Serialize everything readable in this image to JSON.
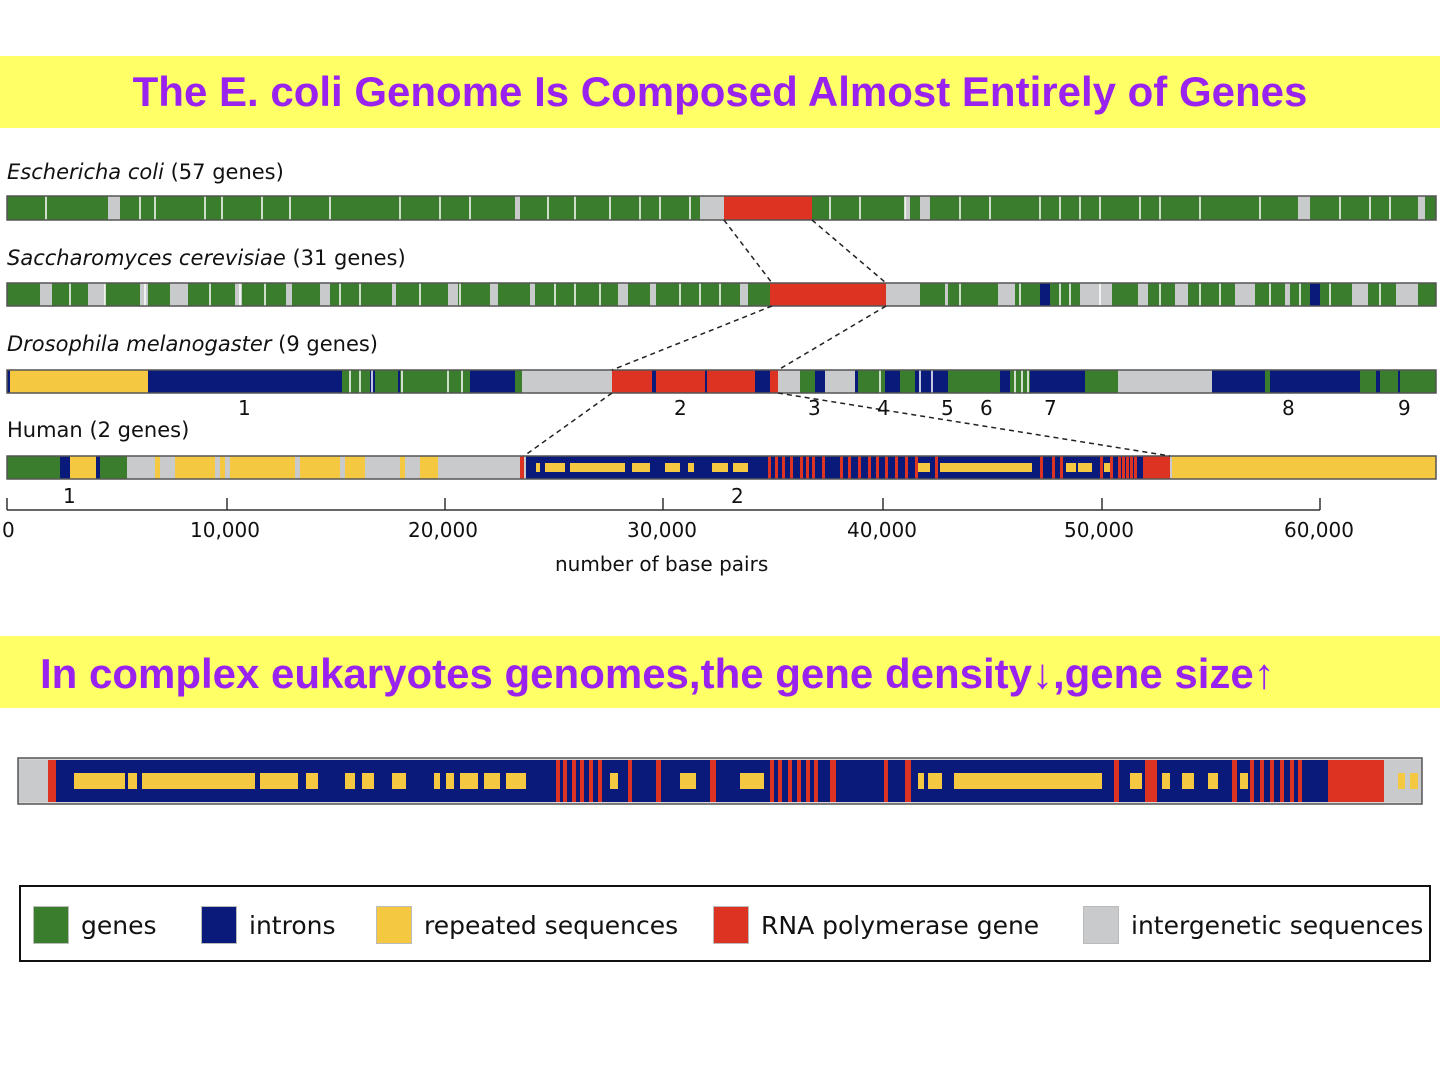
{
  "title": "The E. coli Genome Is Composed Almost Entirely of Genes",
  "subtitle": "In complex eukaryotes genomes,the gene density↓,gene size↑",
  "tracks": [
    {
      "species": "Escherichia coli",
      "species_text": "Escherich​a coli",
      "count_text": "(57 genes)"
    },
    {
      "species_text": "Saccharomyces cerevisiae",
      "count_text": "(31 genes)"
    },
    {
      "species_text": "Drosophila melanogaster",
      "count_text": "(9 genes)"
    },
    {
      "species_text": "Human",
      "count_text": "(2 genes)"
    }
  ],
  "drosophila_gene_numbers": [
    "1",
    "2",
    "3",
    "4",
    "5",
    "6",
    "7",
    "8",
    "9"
  ],
  "human_gene_numbers": [
    "1",
    "2"
  ],
  "axis": {
    "title": "number of base pairs",
    "ticks": [
      "0",
      "10,000",
      "20,000",
      "30,000",
      "40,000",
      "50,000",
      "60,000"
    ]
  },
  "legend": [
    {
      "label": "genes",
      "color": "#3a7d2c"
    },
    {
      "label": "introns",
      "color": "#0a1a7a"
    },
    {
      "label": "repeated sequences",
      "color": "#f5c842"
    },
    {
      "label": "RNA polymerase gene",
      "color": "#dd3322"
    },
    {
      "label": "intergenetic sequences",
      "color": "#c8cacc"
    }
  ]
}
